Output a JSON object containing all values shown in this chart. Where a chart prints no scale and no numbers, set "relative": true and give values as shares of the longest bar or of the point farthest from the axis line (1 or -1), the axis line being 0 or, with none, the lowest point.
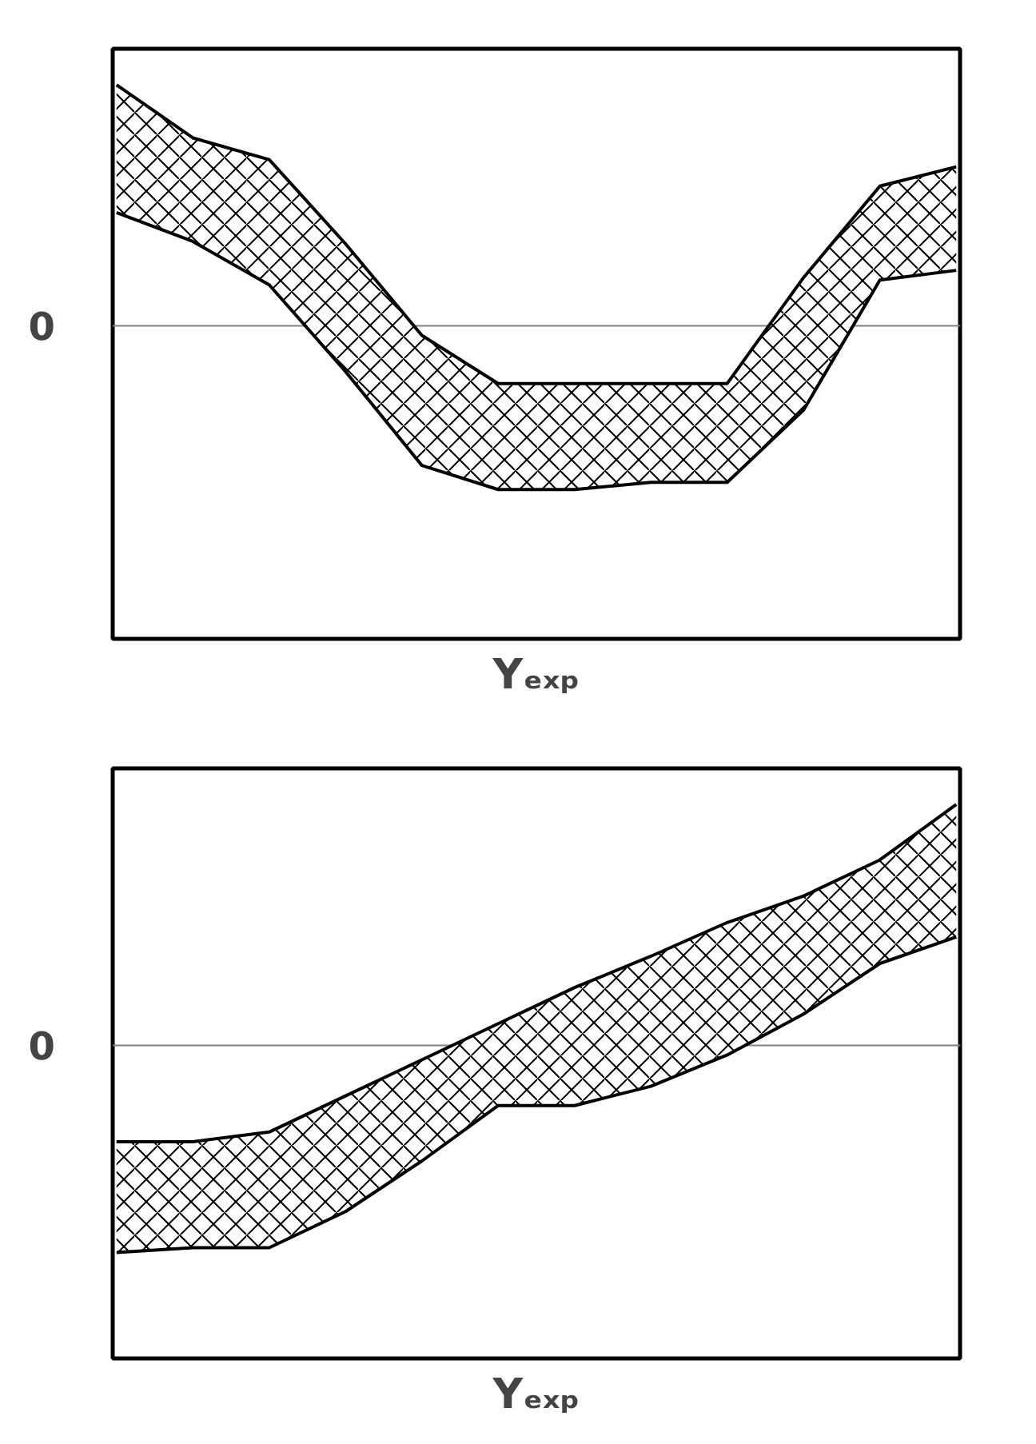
{
  "chart_data": [
    {
      "type": "line",
      "relative": true,
      "xlabel": "Yₑₓₚ",
      "categories": [
        null,
        null,
        null,
        null,
        null,
        null,
        null,
        null,
        null,
        null,
        null,
        null
      ],
      "series": [
        {
          "color": "#000000",
          "values": [
            1.0,
            0.78,
            0.69,
            0.34,
            -0.04,
            -0.24,
            -0.24,
            -0.24,
            -0.24,
            0.2,
            0.58,
            0.66
          ],
          "lower": [
            0.47,
            0.35,
            0.17,
            -0.19,
            -0.58,
            -0.68,
            -0.68,
            -0.65,
            -0.65,
            -0.35,
            0.19,
            0.23
          ],
          "upper": [
            1.0,
            0.78,
            0.69,
            0.34,
            -0.04,
            -0.24,
            -0.24,
            -0.24,
            -0.24,
            0.2,
            0.58,
            0.66
          ]
        },
        {
          "color": "#000000",
          "values": [
            0.47,
            0.35,
            0.17,
            -0.19,
            -0.58,
            -0.68,
            -0.68,
            -0.65,
            -0.65,
            -0.35,
            0.19,
            0.23
          ]
        }
      ],
      "ref_lines": [
        {
          "axis": "y",
          "value": 0,
          "label": "0",
          "color": "#808080"
        }
      ]
    },
    {
      "type": "line",
      "relative": true,
      "xlabel": "Yₑₓₚ",
      "categories": [
        null,
        null,
        null,
        null,
        null,
        null,
        null,
        null,
        null,
        null,
        null,
        null
      ],
      "series": [
        {
          "color": "#000000",
          "values": [
            -0.4,
            -0.4,
            -0.36,
            -0.21,
            -0.06,
            0.09,
            0.24,
            0.37,
            0.51,
            0.62,
            0.77,
            1.0
          ],
          "lower": [
            -0.86,
            -0.84,
            -0.84,
            -0.69,
            -0.48,
            -0.25,
            -0.25,
            -0.17,
            -0.04,
            0.13,
            0.34,
            0.45
          ],
          "upper": [
            -0.4,
            -0.4,
            -0.36,
            -0.21,
            -0.06,
            0.09,
            0.24,
            0.37,
            0.51,
            0.62,
            0.77,
            1.0
          ]
        },
        {
          "color": "#000000",
          "values": [
            -0.86,
            -0.84,
            -0.84,
            -0.69,
            -0.48,
            -0.25,
            -0.25,
            -0.17,
            -0.04,
            0.13,
            0.34,
            0.45
          ]
        }
      ],
      "ref_lines": [
        {
          "axis": "y",
          "value": 0,
          "label": "0",
          "color": "#808080"
        }
      ]
    }
  ]
}
